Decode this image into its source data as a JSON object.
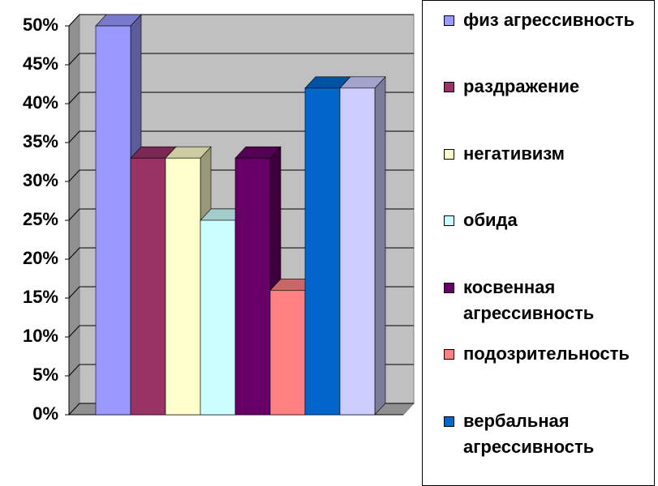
{
  "chart_data": {
    "type": "bar3d",
    "series": [
      {
        "name": "физ агрессивность",
        "color": "#9999ff",
        "values": [
          50
        ]
      },
      {
        "name": "раздражение",
        "color": "#993366",
        "values": [
          33
        ]
      },
      {
        "name": "негативизм",
        "color": "#ffffcc",
        "values": [
          33
        ]
      },
      {
        "name": "обида",
        "color": "#ccffff",
        "values": [
          25
        ]
      },
      {
        "name": "косвенная агрессивность",
        "color": "#660066",
        "values": [
          33
        ]
      },
      {
        "name": "подозрительность",
        "color": "#ff8080",
        "values": [
          16
        ]
      },
      {
        "name": "вербальная агрессивность",
        "color": "#0066cc",
        "values": [
          42
        ]
      },
      {
        "color": "#ccccff",
        "values": [
          42
        ]
      }
    ],
    "ylim": [
      0,
      50
    ],
    "yticks": [
      {
        "value": 0,
        "label": "0%"
      },
      {
        "value": 5,
        "label": "5%"
      },
      {
        "value": 10,
        "label": "10%"
      },
      {
        "value": 15,
        "label": "15%"
      },
      {
        "value": 20,
        "label": "20%"
      },
      {
        "value": 25,
        "label": "25%"
      },
      {
        "value": 30,
        "label": "30%"
      },
      {
        "value": 35,
        "label": "35%"
      },
      {
        "value": 40,
        "label": "40%"
      },
      {
        "value": 45,
        "label": "45%"
      },
      {
        "value": 50,
        "label": "50%"
      }
    ],
    "grid": true,
    "legend": "right"
  }
}
